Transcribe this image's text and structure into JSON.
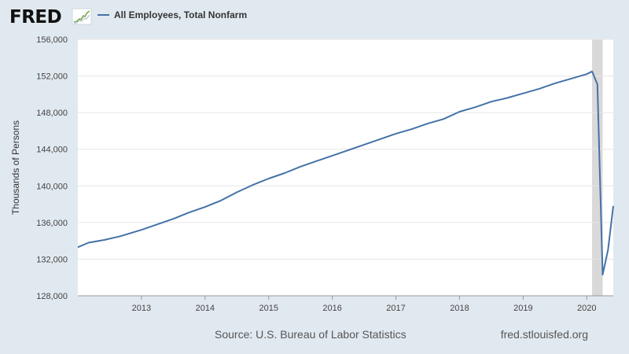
{
  "logo": {
    "text": "FRED"
  },
  "chart_data": {
    "type": "line",
    "title": "",
    "ylabel": "Thousands of Persons",
    "xlabel": "",
    "ylim": [
      128000,
      156000
    ],
    "xlim": [
      "2012-01",
      "2020-06"
    ],
    "y_ticks": [
      128000,
      132000,
      136000,
      140000,
      144000,
      148000,
      152000,
      156000
    ],
    "y_tick_labels": [
      "128,000",
      "132,000",
      "136,000",
      "140,000",
      "144,000",
      "148,000",
      "152,000",
      "156,000"
    ],
    "x_ticks": [
      "2013-01",
      "2014-01",
      "2015-01",
      "2016-01",
      "2017-01",
      "2018-01",
      "2019-01",
      "2020-01"
    ],
    "x_tick_labels": [
      "2013",
      "2014",
      "2015",
      "2016",
      "2017",
      "2018",
      "2019",
      "2020"
    ],
    "grid": true,
    "recession_shading": [
      [
        "2020-02",
        "2020-04"
      ]
    ],
    "series": [
      {
        "name": "All Employees, Total Nonfarm",
        "color": "#4572a7",
        "x": [
          "2012-01",
          "2012-03",
          "2012-06",
          "2012-09",
          "2013-01",
          "2013-04",
          "2013-07",
          "2013-10",
          "2014-01",
          "2014-04",
          "2014-07",
          "2014-10",
          "2015-01",
          "2015-04",
          "2015-07",
          "2015-10",
          "2016-01",
          "2016-04",
          "2016-07",
          "2016-10",
          "2017-01",
          "2017-04",
          "2017-07",
          "2017-10",
          "2018-01",
          "2018-04",
          "2018-07",
          "2018-10",
          "2019-01",
          "2019-04",
          "2019-07",
          "2019-10",
          "2020-01",
          "2020-02",
          "2020-03",
          "2020-04",
          "2020-05",
          "2020-06"
        ],
        "values": [
          133300,
          133800,
          134100,
          134500,
          135200,
          135800,
          136400,
          137100,
          137700,
          138400,
          139300,
          140100,
          140800,
          141400,
          142100,
          142700,
          143300,
          143900,
          144500,
          145100,
          145700,
          146200,
          146800,
          147300,
          148100,
          148600,
          149200,
          149600,
          150100,
          150600,
          151200,
          151700,
          152200,
          152500,
          151100,
          130300,
          133000,
          137800
        ]
      }
    ]
  },
  "footer": {
    "source": "Source: U.S. Bureau of Labor Statistics",
    "site": "fred.stlouisfed.org"
  }
}
